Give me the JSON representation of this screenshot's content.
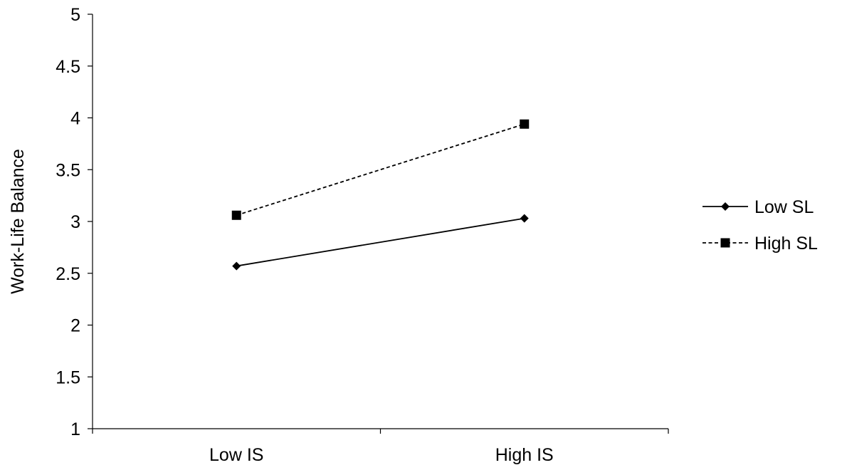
{
  "chart_data": {
    "type": "line",
    "title": "",
    "xlabel": "",
    "ylabel": "Work-Life Balance",
    "categories": [
      "Low IS",
      "High IS"
    ],
    "ylim": [
      1,
      5
    ],
    "yticks": [
      "1",
      "1.5",
      "2",
      "2.5",
      "3",
      "3.5",
      "4",
      "4.5",
      "5"
    ],
    "grid": false,
    "legend_position": "right",
    "series": [
      {
        "name": "Low SL",
        "values": [
          2.57,
          3.03
        ],
        "line_style": "solid",
        "marker": "diamond",
        "color": "#000000"
      },
      {
        "name": "High SL",
        "values": [
          3.06,
          3.94
        ],
        "line_style": "dashed",
        "marker": "square",
        "color": "#000000"
      }
    ]
  }
}
